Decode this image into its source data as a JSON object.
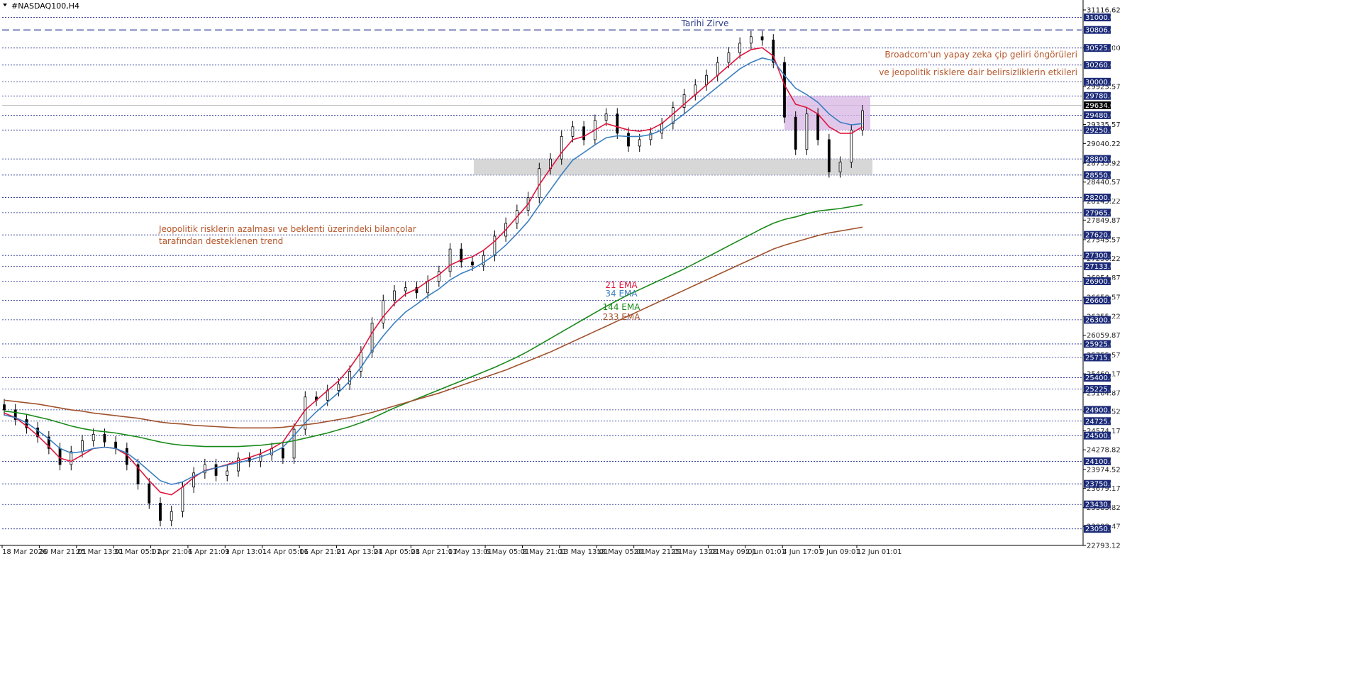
{
  "window": {
    "symbol_label": "#NASDAQ100,H4"
  },
  "colors": {
    "background": "#ffffff",
    "candle": "#000000",
    "level_line": "#1e2a8c",
    "label_box": "#1b2a78",
    "ema21": "#e0143c",
    "ema34": "#3a7fc1",
    "ema144": "#1a8a1a",
    "ema233": "#a0522d",
    "annotation": "#b5562a",
    "peak_label": "#2c3e8c",
    "zone_gray": "#d3d3d3",
    "zone_purple": "#d7b6e4"
  },
  "chart_data": {
    "type": "candlestick",
    "title": "",
    "ylim": [
      22793.12,
      31116.62
    ],
    "x_labels": [
      "18 Mar 2026",
      "20 Mar 21:01",
      "25 Mar 13:01",
      "30 Mar 05:01",
      "1 Apr 21:01",
      "6 Apr 21:01",
      "9 Apr 13:01",
      "14 Apr 05:01",
      "16 Apr 21:01",
      "21 Apr 13:01",
      "24 Apr 05:01",
      "28 Apr 21:01",
      "1 May 13:01",
      "6 May 05:01",
      "8 May 21:01",
      "13 May 13:01",
      "18 May 05:01",
      "20 May 21:01",
      "25 May 13:01",
      "28 May 09:01",
      "2 Jun 01:01",
      "4 Jun 17:01",
      "9 Jun 09:01",
      "12 Jun 01:01"
    ],
    "price_scale": [
      "31116.62",
      "30525.00",
      "29925.57",
      "29335.57",
      "29040.22",
      "28735.92",
      "28440.57",
      "28145.22",
      "27849.87",
      "27545.57",
      "27250.22",
      "26954.87",
      "26650.57",
      "26355.22",
      "26059.87",
      "25755.57",
      "25460.17",
      "25164.87",
      "24874.52",
      "24574.17",
      "24278.82",
      "23974.52",
      "23679.17",
      "23383.82",
      "23088.47",
      "22793.12"
    ],
    "levels": [
      "31000.00",
      "30806.00",
      "30525.00",
      "30260.00",
      "30000.00",
      "29780.00",
      "29480.00",
      "29250.00",
      "28800.00",
      "28550.00",
      "28200.00",
      "27965.00",
      "27620.00",
      "27300.00",
      "27133.00",
      "26900.00",
      "26600.00",
      "26300.00",
      "25925.00",
      "25715.00",
      "25400.00",
      "25225.00",
      "24900.00",
      "24725.00",
      "24500.00",
      "24100.00",
      "23750.00",
      "23430.00",
      "23050.00"
    ],
    "current_price": "29634.00",
    "closes": [
      24900,
      24750,
      24620,
      24480,
      24300,
      24050,
      24250,
      24420,
      24520,
      24400,
      24300,
      24050,
      23750,
      23450,
      23180,
      23320,
      23700,
      23920,
      24050,
      23880,
      23950,
      24150,
      24100,
      24200,
      24300,
      24150,
      24600,
      25100,
      25050,
      25200,
      25300,
      25500,
      25800,
      26250,
      26600,
      26750,
      26800,
      26720,
      26900,
      27050,
      27400,
      27200,
      27150,
      27300,
      27600,
      27800,
      28000,
      28200,
      28650,
      28800,
      29150,
      29300,
      29100,
      29400,
      29500,
      29200,
      29000,
      29100,
      29200,
      29350,
      29600,
      29800,
      29950,
      30100,
      30300,
      30450,
      30600,
      30700,
      30650,
      30300,
      29450,
      28950,
      29500,
      29100,
      28600,
      28750,
      29250,
      29550
    ],
    "series": [
      {
        "name": "21 EMA",
        "values": [
          24850,
          24780,
          24650,
          24500,
          24330,
          24150,
          24100,
          24200,
          24300,
          24320,
          24300,
          24200,
          24000,
          23800,
          23620,
          23580,
          23700,
          23850,
          23960,
          24000,
          24050,
          24110,
          24160,
          24220,
          24300,
          24400,
          24650,
          24900,
          25050,
          25200,
          25350,
          25550,
          25800,
          26100,
          26350,
          26550,
          26700,
          26780,
          26900,
          27000,
          27150,
          27230,
          27280,
          27380,
          27520,
          27700,
          27900,
          28100,
          28400,
          28650,
          28900,
          29100,
          29150,
          29250,
          29350,
          29300,
          29250,
          29230,
          29260,
          29350,
          29500,
          29650,
          29800,
          29950,
          30100,
          30250,
          30400,
          30500,
          30530,
          30400,
          29950,
          29650,
          29600,
          29500,
          29300,
          29200,
          29200,
          29300
        ]
      },
      {
        "name": "34 EMA",
        "values": [
          24820,
          24780,
          24700,
          24580,
          24450,
          24300,
          24230,
          24250,
          24300,
          24320,
          24300,
          24230,
          24100,
          23950,
          23800,
          23740,
          23780,
          23870,
          23950,
          24000,
          24040,
          24080,
          24120,
          24170,
          24230,
          24320,
          24500,
          24700,
          24870,
          25020,
          25170,
          25350,
          25560,
          25820,
          26050,
          26250,
          26420,
          26540,
          26670,
          26780,
          26920,
          27020,
          27090,
          27190,
          27310,
          27460,
          27640,
          27830,
          28080,
          28320,
          28560,
          28780,
          28900,
          29020,
          29130,
          29160,
          29150,
          29150,
          29180,
          29250,
          29370,
          29500,
          29640,
          29780,
          29920,
          30060,
          30200,
          30300,
          30370,
          30330,
          30100,
          29900,
          29800,
          29680,
          29500,
          29370,
          29330,
          29350
        ]
      },
      {
        "name": "144 EMA",
        "values": [
          24880,
          24860,
          24830,
          24790,
          24750,
          24700,
          24650,
          24610,
          24580,
          24560,
          24540,
          24510,
          24480,
          24440,
          24400,
          24370,
          24350,
          24340,
          24330,
          24330,
          24330,
          24330,
          24340,
          24350,
          24370,
          24390,
          24420,
          24460,
          24500,
          24540,
          24590,
          24640,
          24700,
          24770,
          24850,
          24930,
          25000,
          25070,
          25140,
          25210,
          25280,
          25350,
          25420,
          25490,
          25560,
          25640,
          25720,
          25810,
          25910,
          26010,
          26110,
          26210,
          26310,
          26410,
          26510,
          26600,
          26690,
          26770,
          26850,
          26930,
          27010,
          27090,
          27180,
          27270,
          27360,
          27450,
          27540,
          27630,
          27720,
          27800,
          27860,
          27900,
          27950,
          27990,
          28010,
          28030,
          28060,
          28090
        ]
      },
      {
        "name": "233 EMA",
        "values": [
          25050,
          25030,
          25010,
          24990,
          24960,
          24930,
          24900,
          24880,
          24850,
          24830,
          24810,
          24790,
          24770,
          24740,
          24710,
          24690,
          24680,
          24660,
          24650,
          24640,
          24630,
          24620,
          24620,
          24620,
          24620,
          24630,
          24650,
          24670,
          24690,
          24720,
          24750,
          24780,
          24820,
          24860,
          24910,
          24960,
          25010,
          25060,
          25110,
          25160,
          25220,
          25280,
          25340,
          25400,
          25460,
          25520,
          25590,
          25660,
          25730,
          25800,
          25880,
          25960,
          26040,
          26120,
          26200,
          26280,
          26360,
          26440,
          26520,
          26600,
          26680,
          26760,
          26840,
          26920,
          27000,
          27080,
          27160,
          27240,
          27320,
          27400,
          27460,
          27510,
          27560,
          27610,
          27650,
          27680,
          27710,
          27740
        ]
      }
    ]
  },
  "annotations": {
    "peak": "Tarihi Zirve",
    "right_line1": "Broadcom'un yapay zeka çip geliri öngörüleri",
    "right_line2": "ve jeopolitik risklere dair belirsizliklerin etkileri",
    "left_line1": "Jeopolitik risklerin azalması ve beklenti üzerindeki bilançolar",
    "left_line2": "tarafından desteklenen trend"
  },
  "legend": {
    "ema21": "21 EMA",
    "ema34": "34 EMA",
    "ema144": "144 EMA",
    "ema233": "233 EMA"
  }
}
